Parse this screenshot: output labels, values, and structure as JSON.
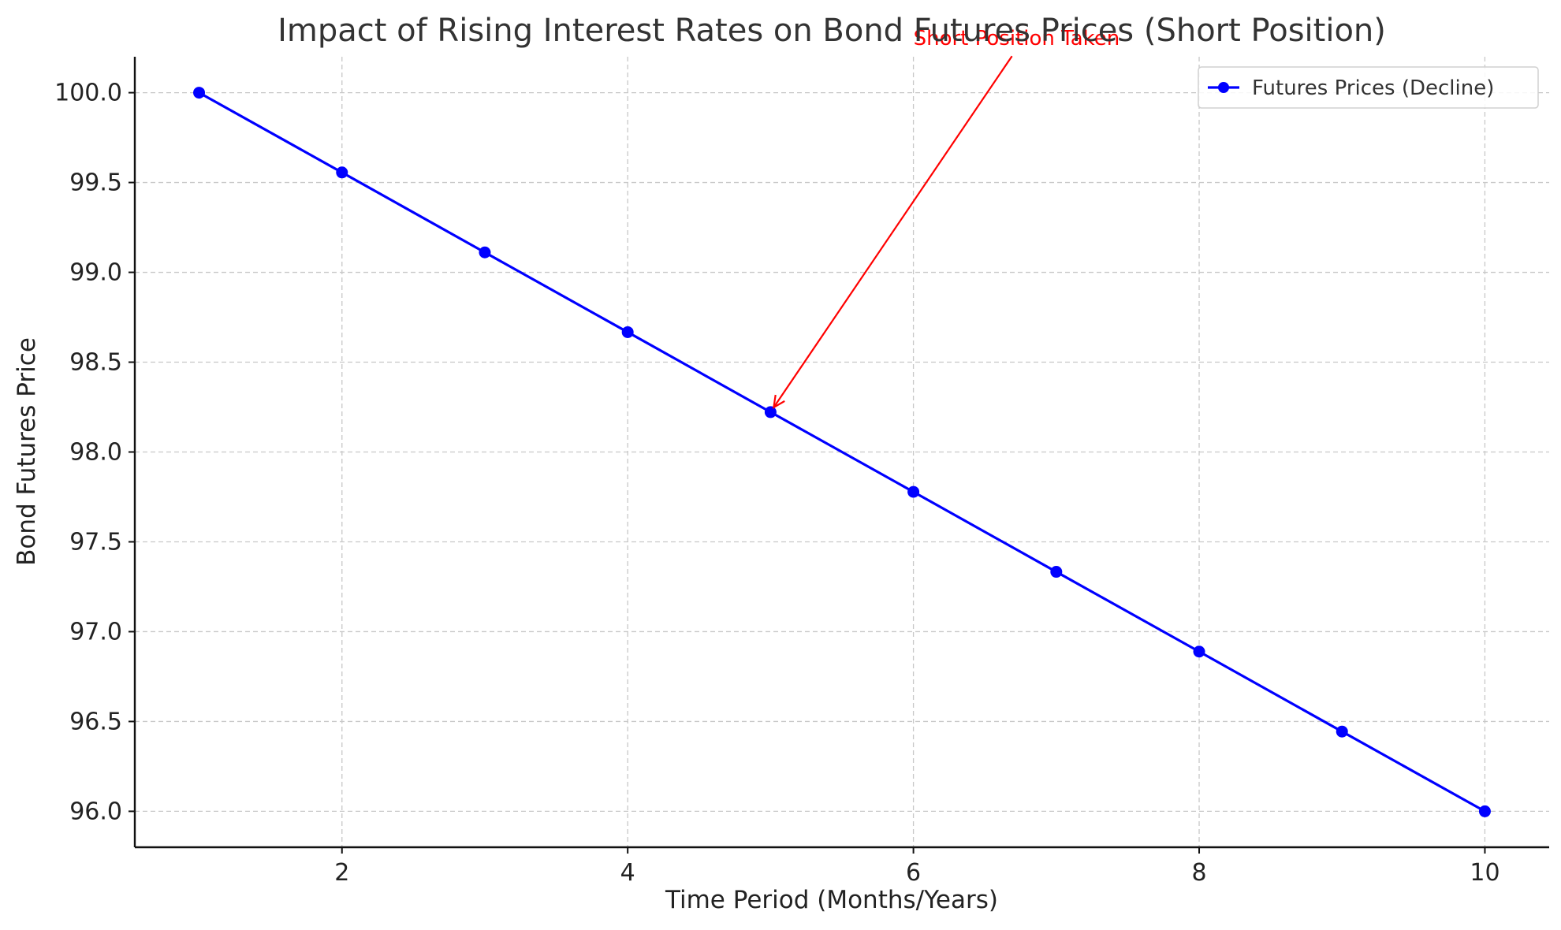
{
  "chart_data": {
    "type": "line",
    "title": "Impact of Rising Interest Rates on Bond Futures Prices (Short Position)",
    "xlabel": "Time Period (Months/Years)",
    "ylabel": "Bond Futures Price",
    "xlim": [
      0.55,
      10.45
    ],
    "ylim": [
      95.8,
      100.2
    ],
    "x_ticks": [
      2,
      4,
      6,
      8,
      10
    ],
    "x_tick_labels": [
      "2",
      "4",
      "6",
      "8",
      "10"
    ],
    "y_ticks": [
      96.0,
      96.5,
      97.0,
      97.5,
      98.0,
      98.5,
      99.0,
      99.5,
      100.0
    ],
    "y_tick_labels": [
      "96.0",
      "96.5",
      "97.0",
      "97.5",
      "98.0",
      "98.5",
      "99.0",
      "99.5",
      "100.0"
    ],
    "grid": true,
    "legend_position": "top-right",
    "series": [
      {
        "name": "Futures Prices (Decline)",
        "color": "#0000ff",
        "marker": "circle",
        "x": [
          1,
          2,
          3,
          4,
          5,
          6,
          7,
          8,
          9,
          10
        ],
        "y": [
          100.0,
          99.556,
          99.111,
          98.667,
          98.222,
          97.778,
          97.333,
          96.889,
          96.444,
          96.0
        ]
      }
    ],
    "annotations": [
      {
        "text": "Short Position Taken",
        "color": "#ff0000",
        "point_x": 5,
        "point_y": 98.222,
        "text_x": 6,
        "text_y": 100.3
      }
    ]
  }
}
